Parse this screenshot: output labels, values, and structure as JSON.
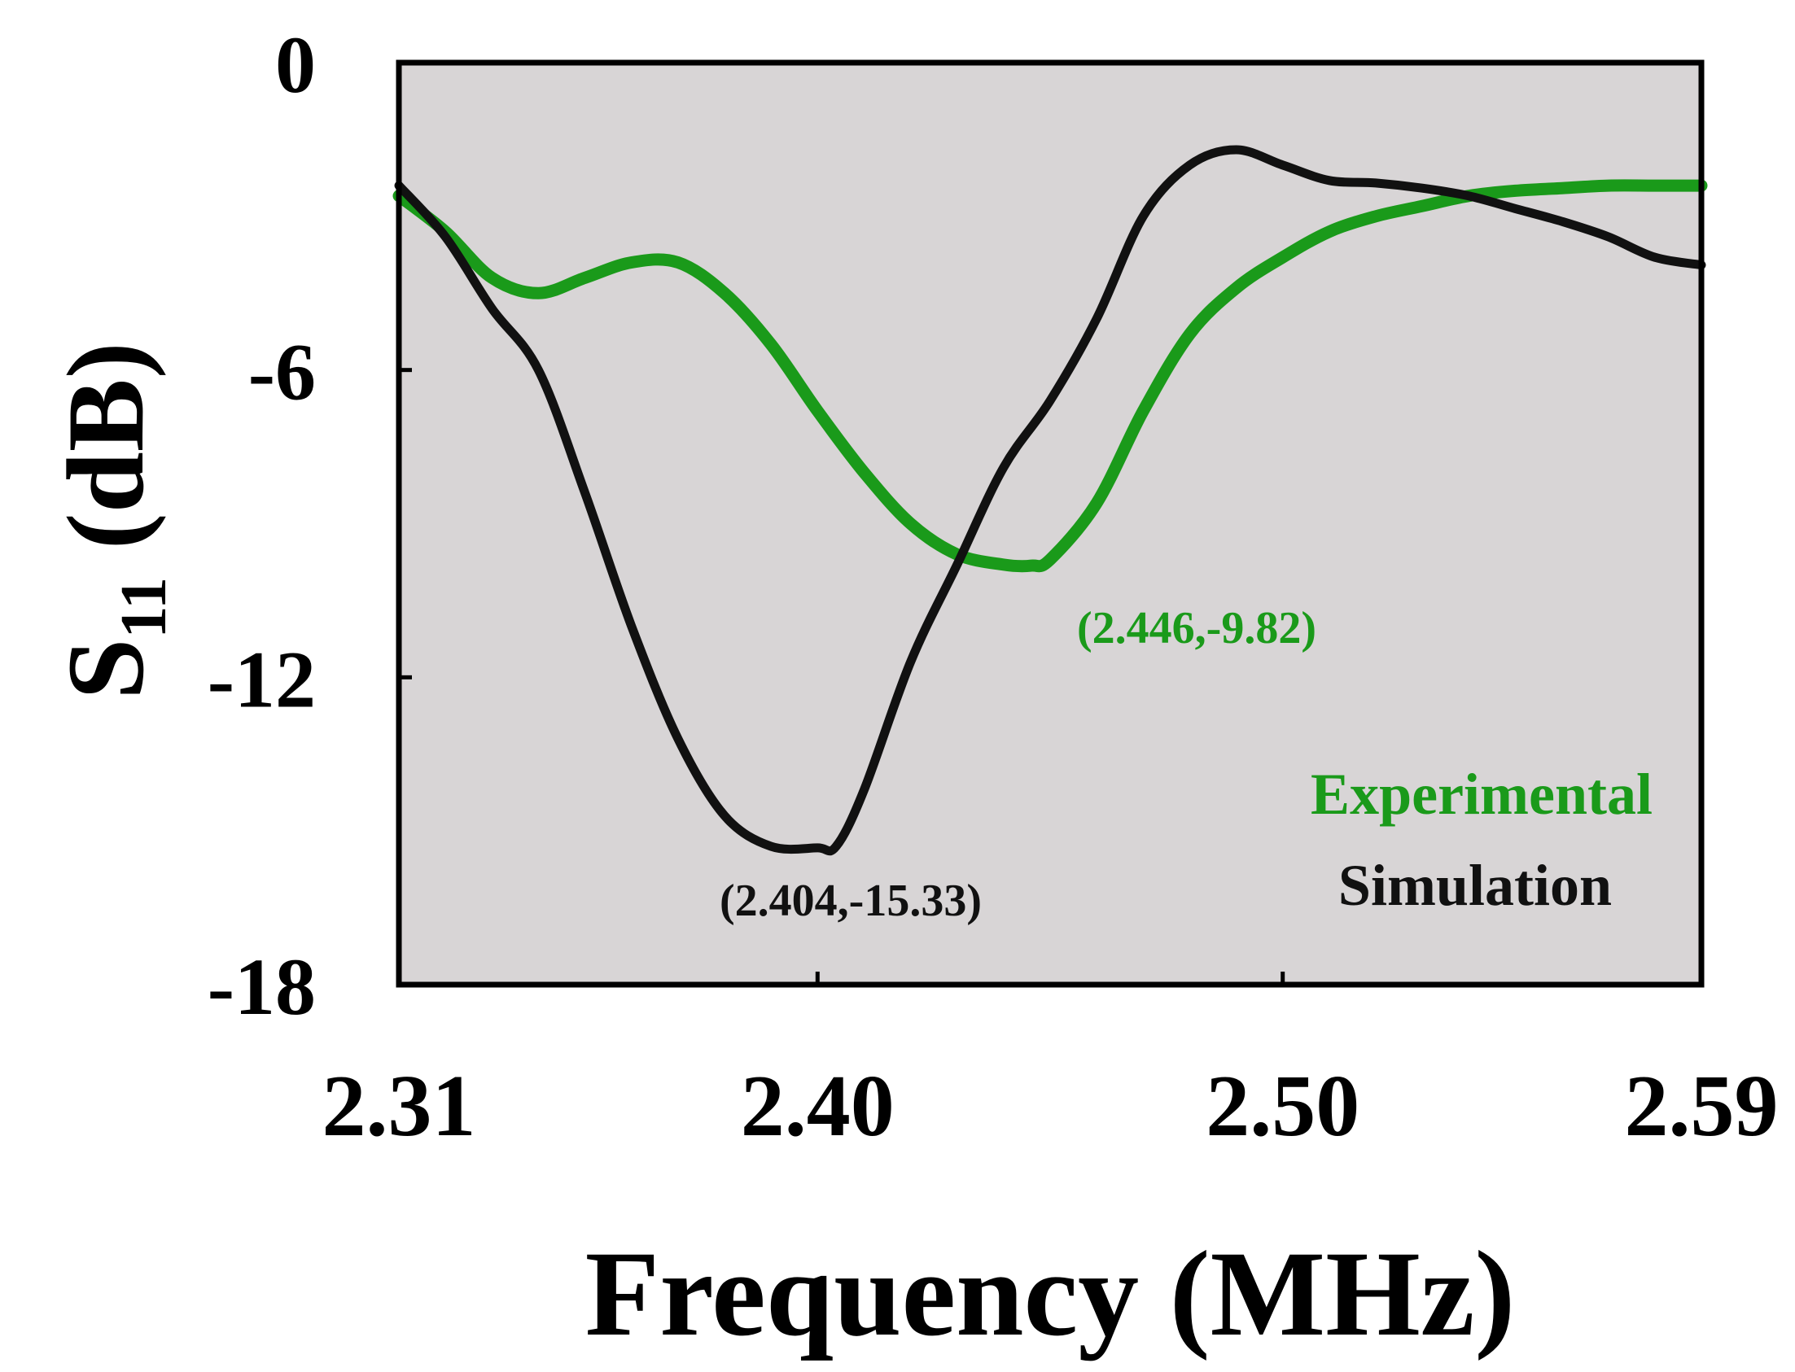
{
  "chart_data": {
    "type": "line",
    "title": "",
    "xlabel": "Frequency (MHz)",
    "ylabel_main": "S",
    "ylabel_sub": "11",
    "ylabel_unit": " (dB)",
    "xlim": [
      2.31,
      2.59
    ],
    "ylim": [
      -18,
      0
    ],
    "xticks": [
      2.31,
      2.4,
      2.5,
      2.59
    ],
    "xtick_labels": [
      "2.31",
      "2.40",
      "2.50",
      "2.59"
    ],
    "yticks": [
      0,
      -6,
      -12,
      -18
    ],
    "ytick_labels": [
      "0",
      "-6",
      "-12",
      "-18"
    ],
    "grid": false,
    "background_color": "#d8d5d6",
    "legend_position": "bottom-right",
    "series": [
      {
        "name": "Experimental",
        "color": "#1a9a1a",
        "x": [
          2.31,
          2.32,
          2.33,
          2.34,
          2.35,
          2.36,
          2.37,
          2.38,
          2.39,
          2.4,
          2.41,
          2.42,
          2.43,
          2.44,
          2.446,
          2.45,
          2.46,
          2.47,
          2.48,
          2.49,
          2.5,
          2.51,
          2.52,
          2.53,
          2.54,
          2.55,
          2.56,
          2.57,
          2.58,
          2.59
        ],
        "y": [
          -2.6,
          -3.3,
          -4.2,
          -4.5,
          -4.2,
          -3.9,
          -3.9,
          -4.5,
          -5.5,
          -6.8,
          -8.0,
          -9.0,
          -9.6,
          -9.8,
          -9.82,
          -9.7,
          -8.6,
          -6.8,
          -5.3,
          -4.4,
          -3.8,
          -3.3,
          -3.0,
          -2.8,
          -2.6,
          -2.5,
          -2.45,
          -2.4,
          -2.4,
          -2.4
        ]
      },
      {
        "name": "Simulation",
        "color": "#111111",
        "x": [
          2.31,
          2.32,
          2.33,
          2.34,
          2.35,
          2.36,
          2.37,
          2.38,
          2.39,
          2.4,
          2.404,
          2.41,
          2.42,
          2.43,
          2.44,
          2.45,
          2.46,
          2.47,
          2.48,
          2.49,
          2.5,
          2.51,
          2.52,
          2.53,
          2.54,
          2.55,
          2.56,
          2.57,
          2.58,
          2.59
        ],
        "y": [
          -2.4,
          -3.4,
          -4.8,
          -6.0,
          -8.4,
          -11.0,
          -13.2,
          -14.7,
          -15.3,
          -15.33,
          -15.3,
          -14.2,
          -11.7,
          -9.8,
          -7.9,
          -6.6,
          -5.0,
          -3.0,
          -2.0,
          -1.7,
          -2.0,
          -2.3,
          -2.35,
          -2.45,
          -2.6,
          -2.85,
          -3.1,
          -3.4,
          -3.8,
          -3.95
        ]
      }
    ],
    "annotations": [
      {
        "text": "(2.446,-9.82)",
        "x": 2.446,
        "y": -9.82,
        "color": "#1a9a1a"
      },
      {
        "text": "(2.404,-15.33)",
        "x": 2.404,
        "y": -15.33,
        "color": "#111111"
      }
    ],
    "legend": [
      {
        "label": "Experimental",
        "color": "#1a9a1a"
      },
      {
        "label": "Simulation",
        "color": "#111111"
      }
    ]
  }
}
